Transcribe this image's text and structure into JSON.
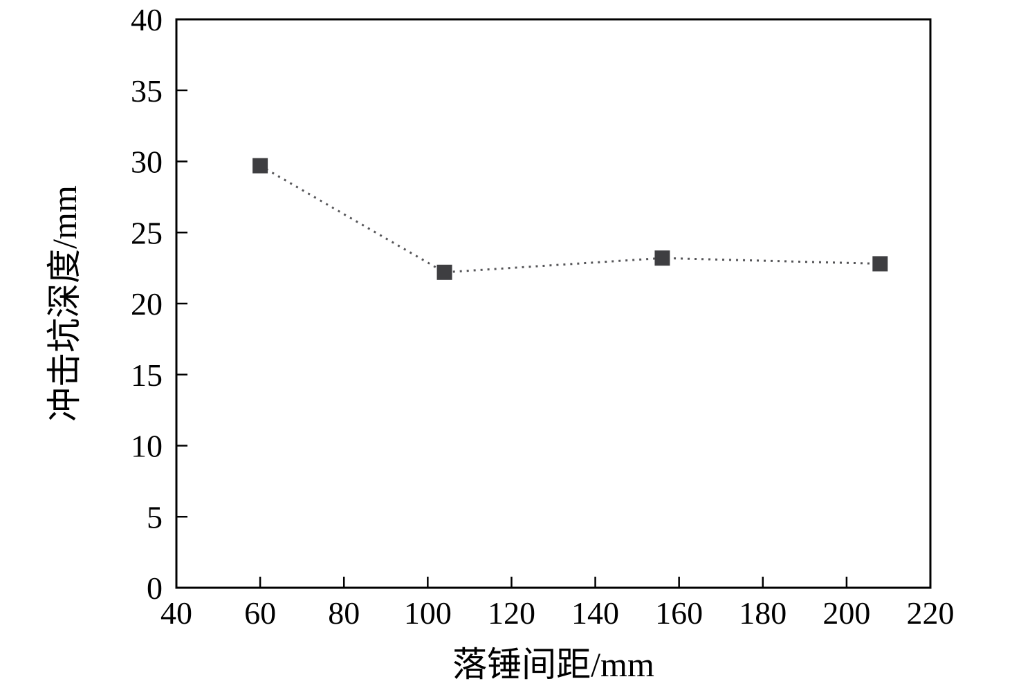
{
  "chart_data": {
    "type": "line",
    "title": "",
    "xlabel": "落锤间距/mm",
    "ylabel": "冲击坑深度/mm",
    "x": [
      60,
      104,
      156,
      208
    ],
    "y": [
      29.7,
      22.2,
      23.2,
      22.8
    ],
    "series": [
      {
        "name": "冲击坑深度",
        "x": [
          60,
          104,
          156,
          208
        ],
        "values": [
          29.7,
          22.2,
          23.2,
          22.8
        ]
      }
    ],
    "xlim": [
      40,
      220
    ],
    "ylim": [
      0,
      40
    ],
    "xticks": [
      40,
      60,
      80,
      100,
      120,
      140,
      160,
      180,
      200,
      220
    ],
    "yticks": [
      0,
      5,
      10,
      15,
      20,
      25,
      30,
      35,
      40
    ],
    "grid": false,
    "legend_position": "none",
    "line_style": "dotted",
    "marker": "square",
    "colors": {
      "marker": "#3e3e41",
      "line": "#555558",
      "axis": "#000000",
      "background": "#ffffff"
    }
  }
}
